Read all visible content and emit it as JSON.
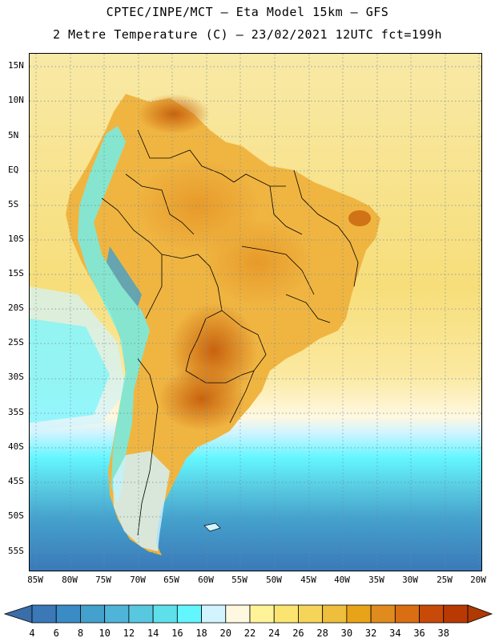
{
  "title": {
    "line1": "CPTEC/INPE/MCT —  Eta Model 15km — GFS",
    "line2": "2 Metre Temperature (C) — 23/02/2021 12UTC fct=199h"
  },
  "lat_labels": [
    "15N",
    "10N",
    "5N",
    "EQ",
    "5S",
    "10S",
    "15S",
    "20S",
    "25S",
    "30S",
    "35S",
    "40S",
    "45S",
    "50S",
    "55S"
  ],
  "lon_labels": [
    "85W",
    "80W",
    "75W",
    "70W",
    "65W",
    "60W",
    "55W",
    "50W",
    "45W",
    "40W",
    "35W",
    "30W",
    "25W",
    "20W"
  ],
  "colorbar": {
    "labels": [
      "4",
      "6",
      "8",
      "10",
      "12",
      "14",
      "16",
      "18",
      "20",
      "22",
      "24",
      "26",
      "28",
      "30",
      "32",
      "34",
      "36",
      "38"
    ],
    "colors": [
      "#3a78b8",
      "#3a8cc4",
      "#44a0cc",
      "#4fb4d8",
      "#58c8e0",
      "#5ee0ea",
      "#63f6ff",
      "#d2f4ff",
      "#fff8e0",
      "#fff39a",
      "#fbe570",
      "#f5d45a",
      "#eebe3c",
      "#e8a318",
      "#e08b1e",
      "#d96e12",
      "#c84a08",
      "#b83a02"
    ],
    "low_color": "#3a6ea8",
    "high_color": "#b03a04"
  }
}
